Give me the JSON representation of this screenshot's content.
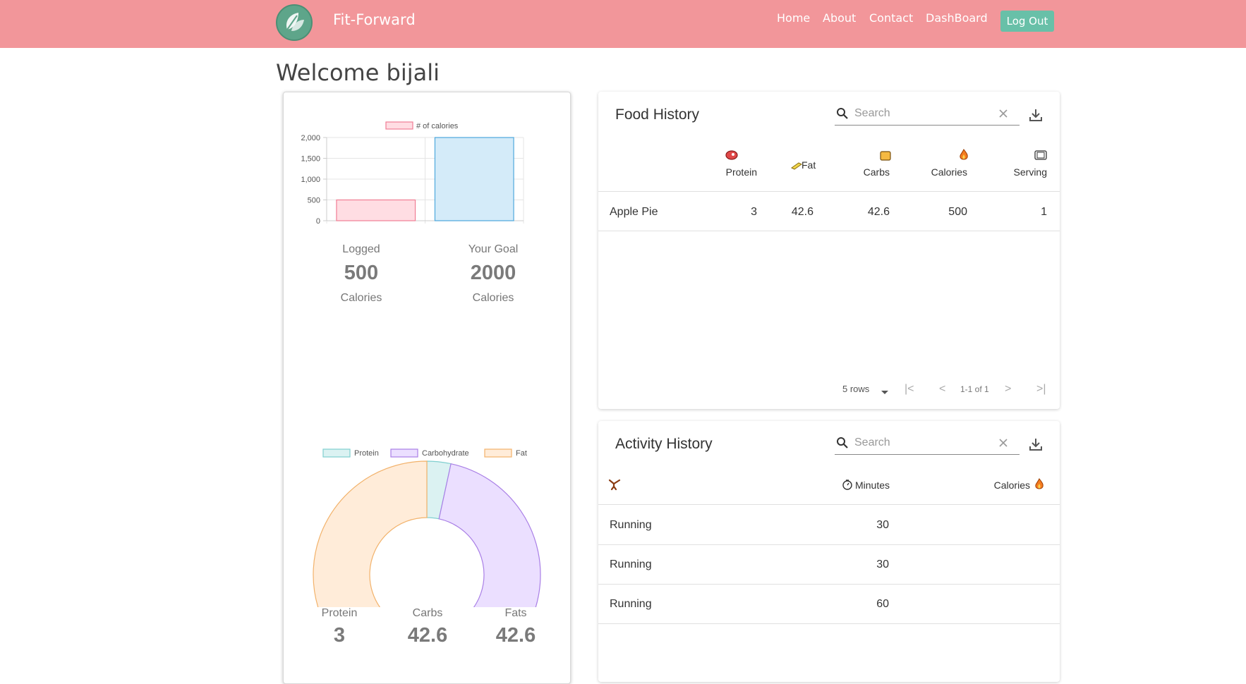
{
  "nav": {
    "brand": "Fit-Forward",
    "links": [
      "Home",
      "About",
      "Contact",
      "DashBoard"
    ],
    "logout": "Log Out"
  },
  "welcome": "Welcome bijali",
  "summary": {
    "logged_label": "Logged",
    "logged_value": "500",
    "logged_unit": "Calories",
    "goal_label": "Your Goal",
    "goal_value": "2000",
    "goal_unit": "Calories"
  },
  "macros": {
    "protein_label": "Protein",
    "protein_value": "3",
    "carbs_label": "Carbs",
    "carbs_value": "42.6",
    "fats_label": "Fats",
    "fats_value": "42.6"
  },
  "chart_data": [
    {
      "type": "bar",
      "categories": [
        "Logged",
        "Your Goal"
      ],
      "series": [
        {
          "name": "# of calories",
          "values": [
            500,
            2000
          ]
        }
      ],
      "colors": {
        "fill": [
          "#ffdde3",
          "#d4ebf9"
        ],
        "stroke": [
          "#f07d94",
          "#4da7dc"
        ]
      },
      "ylim": [
        0,
        2000
      ],
      "yticks": [
        "2,000",
        "1,500",
        "1,000",
        "500",
        "0"
      ],
      "grid": true,
      "legend": "top"
    },
    {
      "type": "pie",
      "categories": [
        "Protein",
        "Carbohydrate",
        "Fat"
      ],
      "values": [
        3,
        42.6,
        42.6
      ],
      "colors": {
        "fill": [
          "#dbf2f2",
          "#ebdfff",
          "#ffecd9"
        ],
        "stroke": [
          "#7fcfcf",
          "#a97fe6",
          "#f2b26b"
        ]
      },
      "legend": "top",
      "donut": true
    }
  ],
  "food": {
    "title": "Food History",
    "search_placeholder": "Search",
    "headers": [
      "Protein",
      "Fat",
      "Carbs",
      "Calories",
      "Serving"
    ],
    "rows": [
      {
        "name": "Apple Pie",
        "protein": "3",
        "fat": "42.6",
        "carbs": "42.6",
        "calories": "500",
        "serving": "1"
      }
    ],
    "rows_per_page": "5 rows",
    "page_info": "1-1 of 1"
  },
  "activity": {
    "title": "Activity History",
    "search_placeholder": "Search",
    "headers": [
      "Minutes",
      "Calories"
    ],
    "rows": [
      {
        "name": "Running",
        "minutes": "30"
      },
      {
        "name": "Running",
        "minutes": "30"
      },
      {
        "name": "Running",
        "minutes": "60"
      }
    ]
  }
}
